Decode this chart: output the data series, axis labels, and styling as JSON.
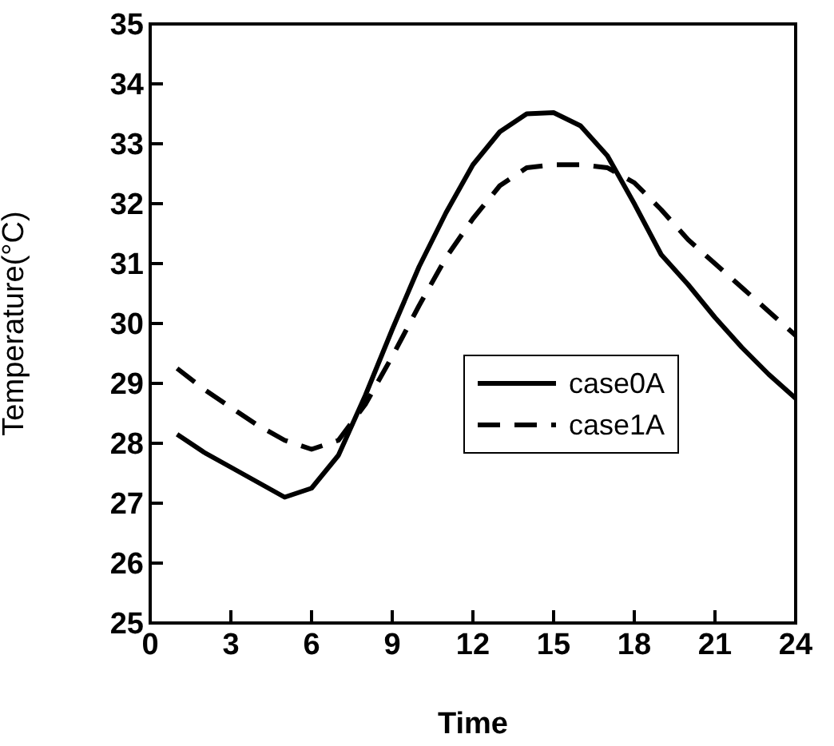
{
  "chart_data": {
    "type": "line",
    "xlabel": "Time",
    "ylabel": "Temperature(°C)",
    "x": [
      1,
      2,
      3,
      4,
      5,
      6,
      7,
      8,
      9,
      10,
      11,
      12,
      13,
      14,
      15,
      16,
      17,
      18,
      19,
      20,
      21,
      22,
      23,
      24
    ],
    "series": [
      {
        "name": "case0A",
        "color": "#000000",
        "line_style": "solid",
        "values": [
          28.15,
          27.85,
          27.6,
          27.35,
          27.1,
          27.25,
          27.8,
          28.8,
          29.9,
          30.95,
          31.85,
          32.65,
          33.2,
          33.5,
          33.52,
          33.3,
          32.8,
          32.0,
          31.15,
          30.65,
          30.1,
          29.6,
          29.15,
          28.75
        ]
      },
      {
        "name": "case1A",
        "color": "#000000",
        "line_style": "dashed",
        "values": [
          29.25,
          28.9,
          28.6,
          28.3,
          28.05,
          27.9,
          28.05,
          28.65,
          29.45,
          30.3,
          31.1,
          31.75,
          32.3,
          32.6,
          32.65,
          32.65,
          32.6,
          32.35,
          31.9,
          31.4,
          31.0,
          30.6,
          30.2,
          29.8
        ]
      }
    ],
    "xlim": [
      0,
      24
    ],
    "xticks": [
      0,
      3,
      6,
      9,
      12,
      15,
      18,
      21,
      24
    ],
    "ylim": [
      25,
      35
    ],
    "yticks": [
      25,
      26,
      27,
      28,
      29,
      30,
      31,
      32,
      33,
      34,
      35
    ],
    "grid": false,
    "legend": "right",
    "marker": "none"
  }
}
